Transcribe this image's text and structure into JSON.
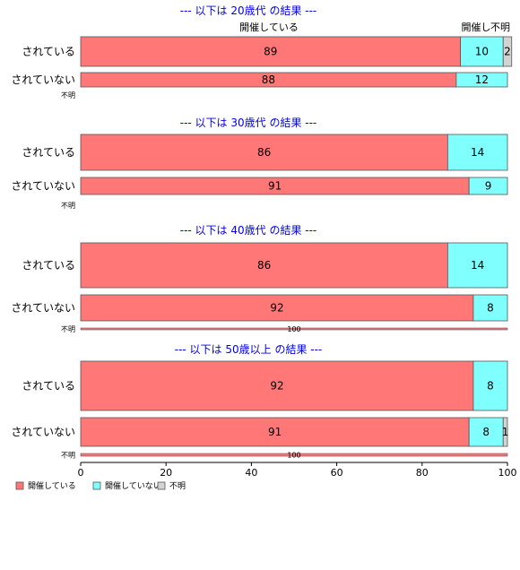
{
  "chart_data": {
    "type": "bar",
    "orientation": "horizontal",
    "stacked": true,
    "percent": true,
    "xlim": [
      0,
      100
    ],
    "xticks": [
      0,
      20,
      40,
      60,
      80,
      100
    ],
    "grid": false,
    "legend_position": "bottom-left",
    "column_headers": [
      "開催している",
      "開催し",
      "不明"
    ],
    "categories_legend": [
      {
        "name": "開催している",
        "color": "#ff7777"
      },
      {
        "name": "開催していない",
        "color": "#80ffff"
      },
      {
        "name": "不明",
        "color": "#d3d3d3"
      }
    ],
    "groups": [
      {
        "title": "--- 以下は 20歳代 の結果 ---",
        "rows": [
          {
            "label": "されている",
            "values": [
              89,
              10,
              2
            ],
            "labels": [
              "89",
              "10",
              "2"
            ]
          },
          {
            "label": "されていない",
            "values": [
              88,
              12,
              0
            ],
            "labels": [
              "88",
              "12",
              ""
            ]
          },
          {
            "label": "不明",
            "values": [
              0,
              0,
              0
            ],
            "labels": [
              "",
              "",
              ""
            ],
            "total_label": ""
          }
        ]
      },
      {
        "title": "--- 以下は 30歳代 の結果 ---",
        "rows": [
          {
            "label": "されている",
            "values": [
              86,
              14,
              0
            ],
            "labels": [
              "86",
              "14",
              ""
            ]
          },
          {
            "label": "されていない",
            "values": [
              91,
              9,
              0
            ],
            "labels": [
              "91",
              "9",
              ""
            ]
          },
          {
            "label": "不明",
            "values": [
              0,
              0,
              0
            ],
            "labels": [
              "",
              "",
              ""
            ],
            "total_label": ""
          }
        ]
      },
      {
        "title": "--- 以下は 40歳代 の結果 ---",
        "rows": [
          {
            "label": "されている",
            "values": [
              86,
              14,
              0
            ],
            "labels": [
              "86",
              "14",
              ""
            ]
          },
          {
            "label": "されていない",
            "values": [
              92,
              8,
              0
            ],
            "labels": [
              "92",
              "8",
              ""
            ]
          },
          {
            "label": "不明",
            "values": [
              100,
              0,
              0
            ],
            "labels": [
              "",
              "",
              ""
            ],
            "total_label": "100"
          }
        ]
      },
      {
        "title": "--- 以下は 50歳以上 の結果 ---",
        "rows": [
          {
            "label": "されている",
            "values": [
              92,
              8,
              0
            ],
            "labels": [
              "92",
              "8",
              ""
            ]
          },
          {
            "label": "されていない",
            "values": [
              91,
              8,
              1
            ],
            "labels": [
              "91",
              "8",
              "1"
            ]
          },
          {
            "label": "不明",
            "values": [
              100,
              0,
              0
            ],
            "labels": [
              "",
              "",
              ""
            ],
            "total_label": "100"
          }
        ]
      }
    ]
  }
}
